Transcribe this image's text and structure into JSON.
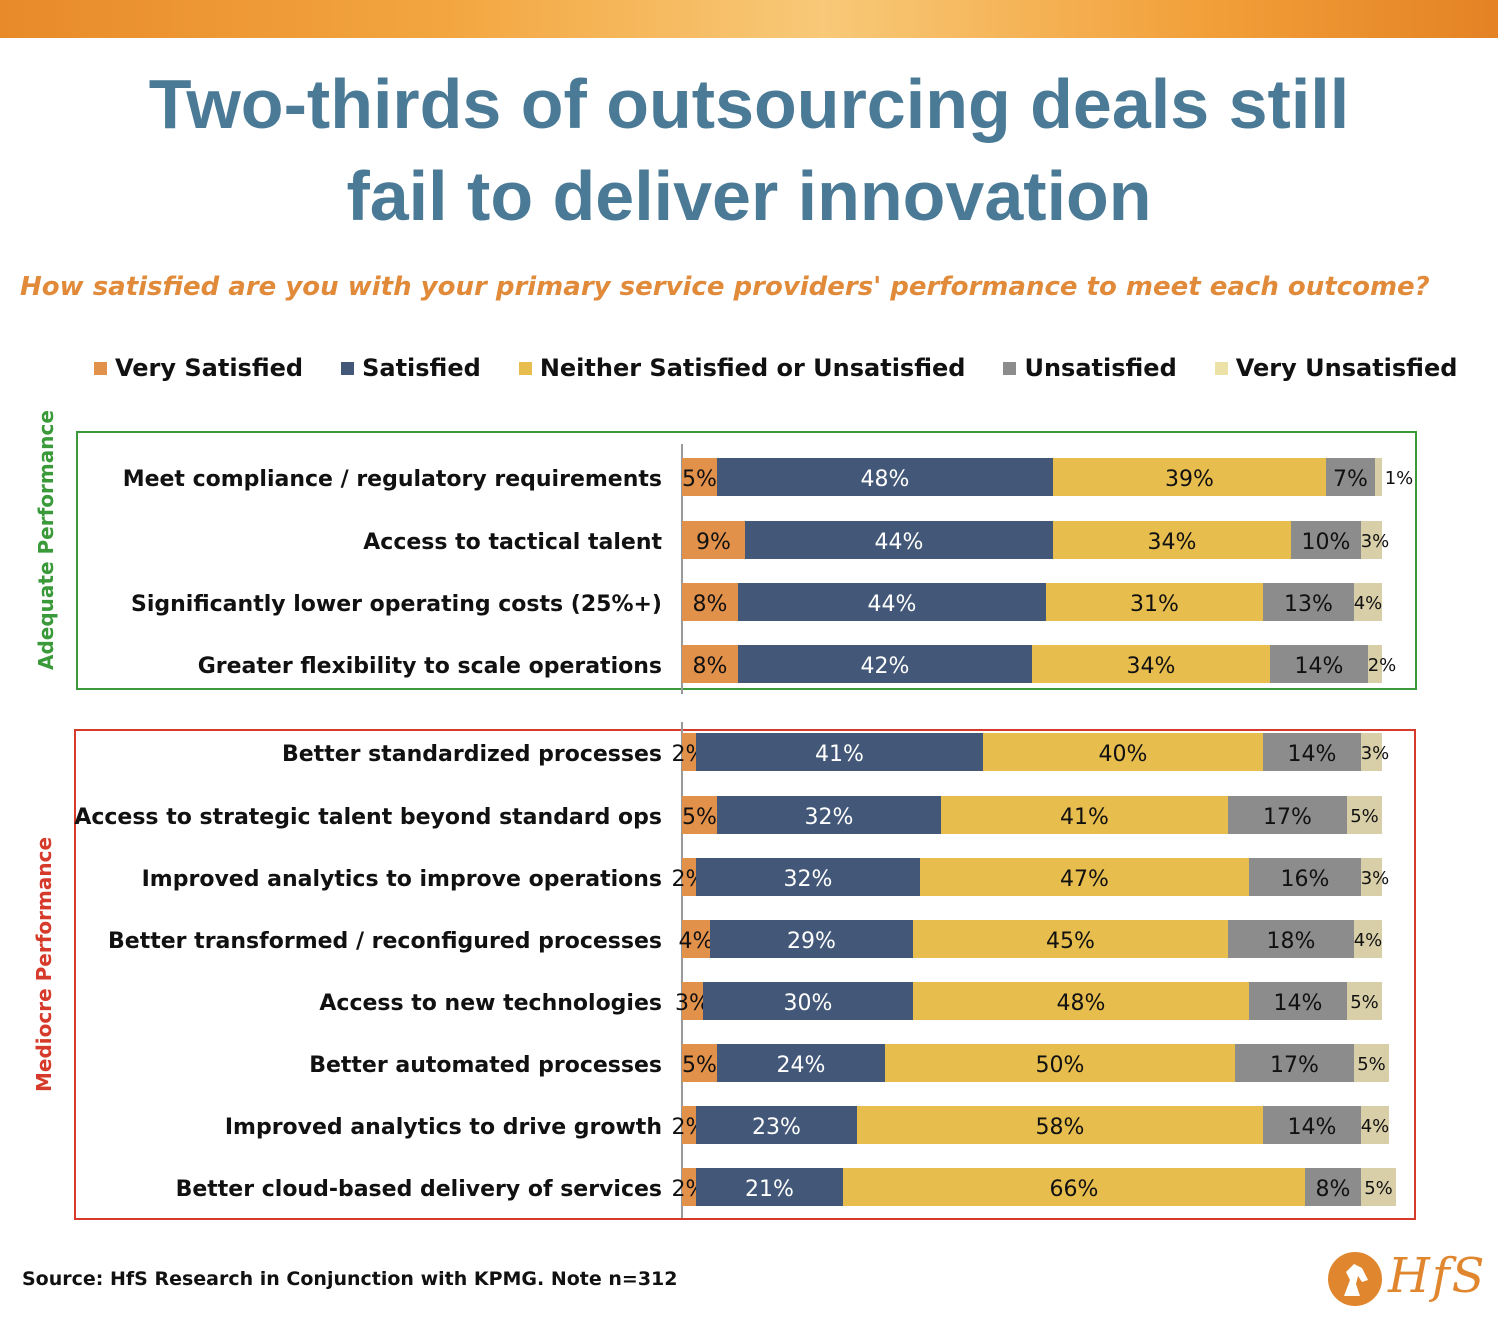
{
  "title": "Two-thirds of outsourcing deals still fail to deliver innovation",
  "title_lines": [
    "Two-thirds of outsourcing deals still",
    "fail to deliver innovation"
  ],
  "subtitle": "How satisfied are you with your primary service providers' performance to meet each outcome?",
  "colors": {
    "very_satisfied": "#e2914b",
    "satisfied": "#435878",
    "neither": "#e7bd4e",
    "unsatisfied": "#8c8c8c",
    "very_unsatisfied": "#d8cfa9",
    "adequate_border": "#3a9a3a",
    "mediocre_border": "#d63a2a",
    "title": "#4a7a96",
    "subtitle": "#e08a3a"
  },
  "groups": [
    {
      "name": "Adequate Performance"
    },
    {
      "name": "Mediocre Performance"
    }
  ],
  "chart_data": {
    "type": "bar",
    "orientation": "horizontal",
    "stacked": true,
    "title": "How satisfied are you with your primary service providers' performance to meet each outcome?",
    "legend_position": "top",
    "xlim": [
      0,
      100
    ],
    "categories": [
      "Meet compliance / regulatory requirements",
      "Access to tactical talent",
      "Significantly lower operating costs (25%+)",
      "Greater flexibility to scale operations",
      "Better standardized processes",
      "Access to strategic talent beyond standard ops",
      "Improved analytics to improve operations",
      "Better transformed / reconfigured processes",
      "Access to new technologies",
      "Better automated processes",
      "Improved analytics to drive growth",
      "Better cloud-based delivery of services"
    ],
    "category_group": [
      0,
      0,
      0,
      0,
      1,
      1,
      1,
      1,
      1,
      1,
      1,
      1
    ],
    "series": [
      {
        "name": "Very Satisfied",
        "values": [
          5,
          9,
          8,
          8,
          2,
          5,
          2,
          4,
          3,
          5,
          2,
          2
        ]
      },
      {
        "name": "Satisfied",
        "values": [
          48,
          44,
          44,
          42,
          41,
          32,
          32,
          29,
          30,
          24,
          23,
          21
        ]
      },
      {
        "name": "Neither Satisfied or Unsatisfied",
        "values": [
          39,
          34,
          31,
          34,
          40,
          41,
          47,
          45,
          48,
          50,
          58,
          66
        ]
      },
      {
        "name": "Unsatisfied",
        "values": [
          7,
          10,
          13,
          14,
          14,
          17,
          16,
          18,
          14,
          17,
          14,
          8
        ]
      },
      {
        "name": "Very Unsatisfied",
        "values": [
          1,
          3,
          4,
          2,
          3,
          5,
          3,
          4,
          5,
          5,
          4,
          5
        ]
      }
    ],
    "data_labels": [
      [
        "5%",
        "48%",
        "39%",
        "7%",
        "1%"
      ],
      [
        "9%",
        "44%",
        "34%",
        "10%",
        "3%"
      ],
      [
        "8%",
        "44%",
        "31%",
        "13%",
        "4%"
      ],
      [
        "8%",
        "42%",
        "34%",
        "14%",
        "2%"
      ],
      [
        "2%",
        "41%",
        "40%",
        "14%",
        "3%"
      ],
      [
        "5%",
        "32%",
        "41%",
        "17%",
        "5%"
      ],
      [
        "2%",
        "32%",
        "47%",
        "16%",
        "3%"
      ],
      [
        "4%",
        "29%",
        "45%",
        "18%",
        "4%"
      ],
      [
        "3%",
        "30%",
        "48%",
        "14%",
        "5%"
      ],
      [
        "5%",
        "24%",
        "50%",
        "17%",
        "5%"
      ],
      [
        "2%",
        "23%",
        "58%",
        "14%",
        "4%"
      ],
      [
        "2%",
        "21%",
        "66%",
        "8%",
        "5%"
      ]
    ]
  },
  "source": "Source: HfS Research in Conjunction with KPMG. Note n=312",
  "logo": {
    "text": "HfS",
    "icon": "horse-head-icon"
  }
}
